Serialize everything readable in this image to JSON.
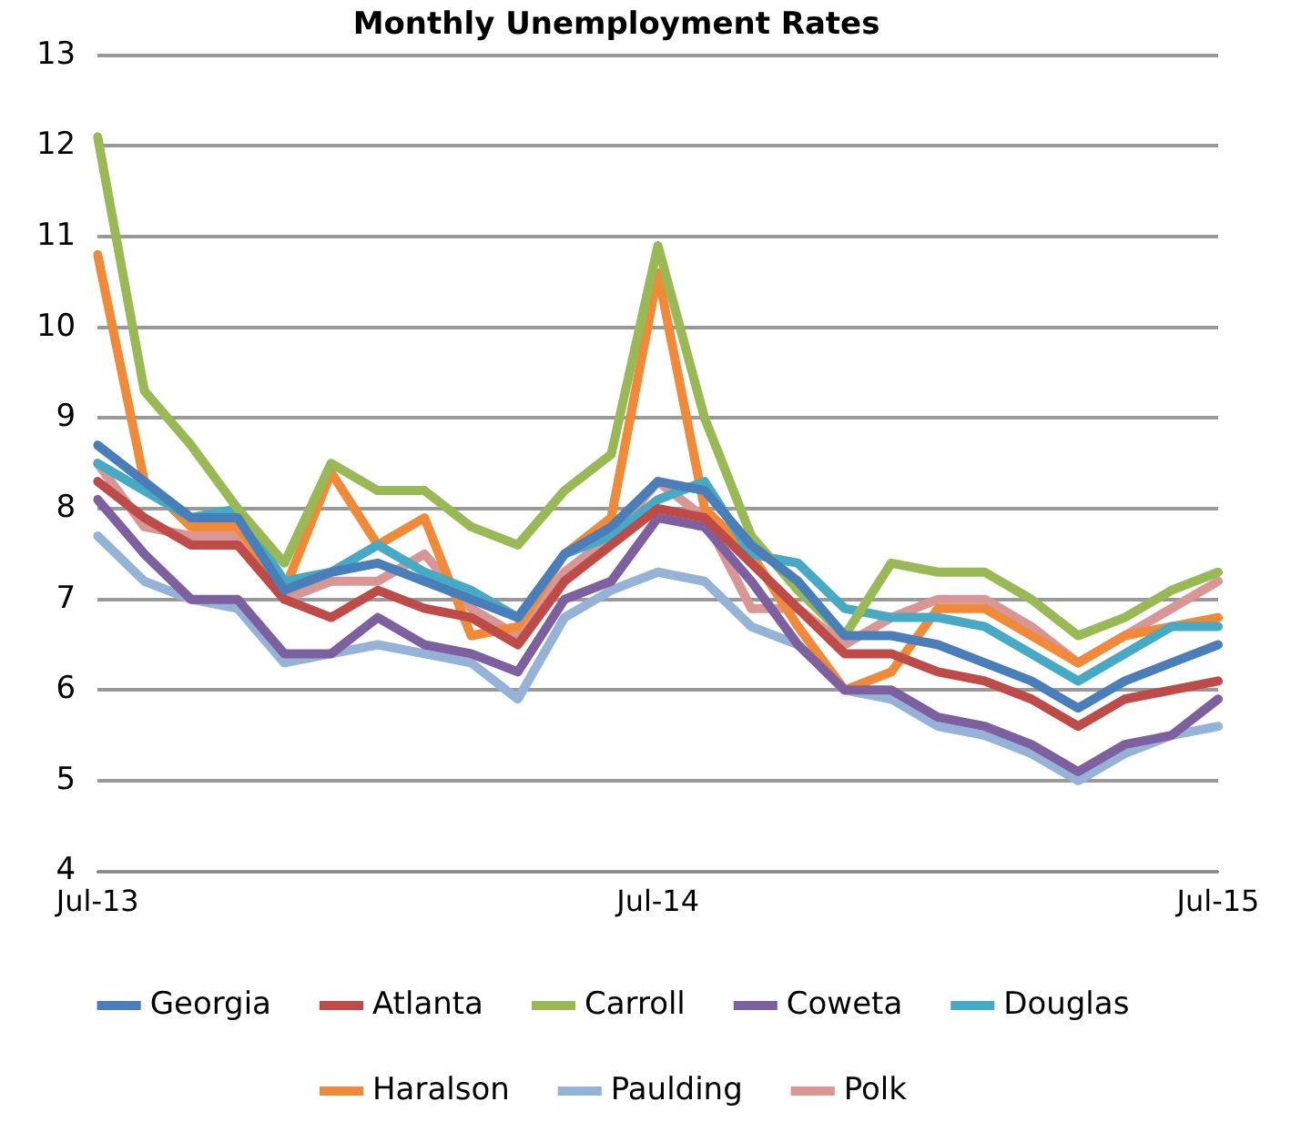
{
  "chart_data": {
    "type": "line",
    "title": "Monthly Unemployment Rates",
    "categories": [
      "Jul-13",
      null,
      null,
      null,
      null,
      null,
      null,
      null,
      null,
      null,
      null,
      null,
      "Jul-14",
      null,
      null,
      null,
      null,
      null,
      null,
      null,
      null,
      null,
      null,
      null,
      "Jul-15"
    ],
    "series": [
      {
        "name": "Georgia",
        "color": "#4a7ebb",
        "values": [
          8.7,
          8.3,
          7.9,
          7.9,
          7.1,
          7.3,
          7.4,
          7.2,
          7.0,
          6.8,
          7.5,
          7.8,
          8.3,
          8.2,
          7.6,
          7.2,
          6.6,
          6.6,
          6.5,
          6.3,
          6.1,
          5.8,
          6.1,
          6.3,
          6.5
        ]
      },
      {
        "name": "Atlanta",
        "color": "#be4b48",
        "values": [
          8.3,
          7.9,
          7.6,
          7.6,
          7.0,
          6.8,
          7.1,
          6.9,
          6.8,
          6.5,
          7.2,
          7.6,
          8.0,
          7.9,
          7.4,
          6.9,
          6.4,
          6.4,
          6.2,
          6.1,
          5.9,
          5.6,
          5.9,
          6.0,
          6.1
        ]
      },
      {
        "name": "Carroll",
        "color": "#98b954",
        "values": [
          12.1,
          9.3,
          8.7,
          8.0,
          7.4,
          8.5,
          8.2,
          8.2,
          7.8,
          7.6,
          8.2,
          8.6,
          10.9,
          9.0,
          7.7,
          7.1,
          6.6,
          7.4,
          7.3,
          7.3,
          7.0,
          6.6,
          6.8,
          7.1,
          7.3
        ]
      },
      {
        "name": "Coweta",
        "color": "#7d60a0",
        "values": [
          8.1,
          7.5,
          7.0,
          7.0,
          6.4,
          6.4,
          6.8,
          6.5,
          6.4,
          6.2,
          7.0,
          7.2,
          7.9,
          7.8,
          7.2,
          6.5,
          6.0,
          6.0,
          5.7,
          5.6,
          5.4,
          5.1,
          5.4,
          5.5,
          5.9
        ]
      },
      {
        "name": "Douglas",
        "color": "#46aac5",
        "values": [
          8.5,
          8.2,
          7.9,
          8.0,
          7.2,
          7.3,
          7.6,
          7.3,
          7.1,
          6.8,
          7.5,
          7.7,
          8.1,
          8.3,
          7.5,
          7.4,
          6.9,
          6.8,
          6.8,
          6.7,
          6.4,
          6.1,
          6.4,
          6.7,
          6.7
        ]
      },
      {
        "name": "Haralson",
        "color": "#f08a38",
        "values": [
          10.8,
          8.3,
          7.8,
          7.8,
          7.1,
          8.4,
          7.6,
          7.9,
          6.6,
          6.7,
          7.5,
          7.9,
          10.6,
          8.0,
          7.5,
          6.7,
          6.0,
          6.2,
          6.9,
          6.9,
          6.6,
          6.3,
          6.6,
          6.7,
          6.8
        ]
      },
      {
        "name": "Paulding",
        "color": "#95b3d7",
        "values": [
          7.7,
          7.2,
          7.0,
          6.9,
          6.3,
          6.4,
          6.5,
          6.4,
          6.3,
          5.9,
          6.8,
          7.1,
          7.3,
          7.2,
          6.7,
          6.5,
          6.0,
          5.9,
          5.6,
          5.5,
          5.3,
          5.0,
          5.3,
          5.5,
          5.6
        ]
      },
      {
        "name": "Polk",
        "color": "#d99694",
        "values": [
          8.5,
          7.8,
          7.7,
          7.7,
          7.0,
          7.2,
          7.2,
          7.5,
          6.9,
          6.6,
          7.3,
          7.7,
          8.3,
          7.9,
          6.9,
          6.9,
          6.5,
          6.8,
          7.0,
          7.0,
          6.7,
          6.3,
          6.6,
          6.9,
          7.2
        ]
      }
    ],
    "ylim": [
      4,
      13
    ],
    "yticks": [
      4,
      5,
      6,
      7,
      8,
      9,
      10,
      11,
      12,
      13
    ],
    "grid": "y",
    "legend": "bottom",
    "marker": "none",
    "line_style": "solid"
  }
}
